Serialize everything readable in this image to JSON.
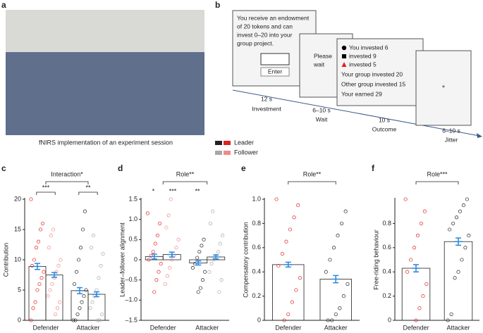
{
  "panel_labels": [
    "a",
    "b"
  ],
  "photo": {
    "caption": "fNIRS implementation of an experiment session"
  },
  "task": {
    "screen1": {
      "lines": [
        "You receive an endowment",
        "of 20 tokens and can",
        "invest 0–20 into your",
        "group project."
      ],
      "button": "Enter"
    },
    "screen2": {
      "lines": [
        "Please",
        "wait"
      ]
    },
    "screen3": {
      "lines": [
        "You invested 6",
        "invested 9",
        "invested 5",
        "Your group invested 20",
        "Other group invested 15",
        "Your earned 29"
      ]
    },
    "screen4": {
      "lines": [
        "+"
      ]
    },
    "stages": [
      {
        "duration": "12 s",
        "name": "Investment"
      },
      {
        "duration": "6–10 s",
        "name": "Wait"
      },
      {
        "duration": "10 s",
        "name": "Outcome"
      },
      {
        "duration": "6–10 s",
        "name": "Jitter"
      }
    ]
  },
  "chart_data": [
    {
      "type": "bar",
      "panel": "c",
      "ylabel": "Contribution",
      "categories": [
        "Defender",
        "Attacker"
      ],
      "ylim": [
        0,
        20
      ],
      "yticks": [
        0,
        5,
        10,
        15,
        20
      ],
      "error_color": "#2f86d6",
      "annotations": [
        "Interaction*",
        "***",
        "**"
      ],
      "series": [
        {
          "name": "Leader",
          "color": [
            "#e02020",
            "#222222"
          ],
          "values": [
            8.9,
            4.9
          ],
          "errors": [
            0.5,
            0.5
          ],
          "points": [
            [
              20,
              16,
              15,
              13,
              12,
              10,
              9,
              8,
              7,
              6,
              5,
              3,
              2,
              0
            ],
            [
              18,
              15,
              12,
              10,
              8,
              6,
              5,
              4,
              3,
              2,
              1,
              0,
              0
            ]
          ]
        },
        {
          "name": "Follower",
          "color": [
            "#f08a8a",
            "#a8a8a8"
          ],
          "values": [
            7.5,
            4.3
          ],
          "errors": [
            0.4,
            0.4
          ],
          "points": [
            [
              15,
              14,
              12,
              10,
              9,
              8,
              7,
              6,
              5,
              4,
              3,
              2,
              1
            ],
            [
              14,
              12,
              11,
              9,
              7,
              5,
              4,
              3,
              2,
              1,
              0,
              0
            ]
          ]
        }
      ]
    },
    {
      "type": "bar",
      "panel": "d",
      "ylabel": "Leader–follower alignment",
      "categories": [
        "Defender",
        "Attacker"
      ],
      "ylim": [
        -1.5,
        1.5
      ],
      "yticks": [
        {
          "value": -1.5,
          "label": "–1.5"
        },
        {
          "value": -1,
          "label": "–1.0"
        },
        {
          "value": -0.5,
          "label": "–0.5"
        },
        0,
        0.5,
        {
          "value": 1,
          "label": "1.0"
        },
        1.5
      ],
      "error_color": "#2f86d6",
      "annotations": [
        "Role**",
        "*",
        "***",
        "**"
      ],
      "series": [
        {
          "name": "Leader",
          "color": [
            "#e02020",
            "#222222"
          ],
          "values": [
            0.08,
            -0.08
          ],
          "errors": [
            0.06,
            0.05
          ],
          "points": [
            [
              1.15,
              0.9,
              0.6,
              0.4,
              0.2,
              0.1,
              0,
              -0.1,
              -0.3,
              -0.5,
              -0.8
            ],
            [
              0.5,
              0.35,
              0.2,
              0.05,
              -0.1,
              -0.2,
              -0.3,
              -0.5,
              -0.7,
              -0.8
            ]
          ]
        },
        {
          "name": "Follower",
          "color": [
            "#f08a8a",
            "#a8a8a8"
          ],
          "values": [
            0.13,
            0.07
          ],
          "errors": [
            0.06,
            0.05
          ],
          "points": [
            [
              1.5,
              1.1,
              0.8,
              0.5,
              0.3,
              0.1,
              0,
              -0.2,
              -0.4,
              -0.6
            ],
            [
              1.2,
              0.9,
              0.6,
              0.4,
              0.2,
              0.1,
              0,
              -0.1,
              -0.3,
              -0.5,
              -0.8
            ]
          ]
        }
      ]
    },
    {
      "type": "bar",
      "panel": "e",
      "ylabel": "Compensatory contribution",
      "categories": [
        "Defender",
        "Attacker"
      ],
      "ylim": [
        0,
        1
      ],
      "yticks": [
        0,
        0.2,
        0.4,
        0.6,
        0.8,
        {
          "value": 1,
          "label": "1.0"
        }
      ],
      "error_color": "#2f86d6",
      "annotations": [
        "Role**"
      ],
      "series": [
        {
          "color": [
            "#e02020",
            "#222222"
          ],
          "values": [
            0.46,
            0.34
          ],
          "errors": [
            0.02,
            0.03
          ],
          "points": [
            [
              1,
              0.95,
              0.85,
              0.75,
              0.65,
              0.55,
              0.45,
              0.35,
              0.25,
              0.15,
              0.05,
              0
            ],
            [
              0.9,
              0.8,
              0.7,
              0.6,
              0.5,
              0.4,
              0.3,
              0.2,
              0.1,
              0.05,
              0,
              0
            ]
          ]
        }
      ]
    },
    {
      "type": "bar",
      "panel": "f",
      "ylabel": "Free-riding behaviour",
      "categories": [
        "Defender",
        "Attacker"
      ],
      "ylim": [
        0,
        1
      ],
      "yticks": [
        0,
        0.2,
        0.4,
        0.6,
        0.8
      ],
      "error_color": "#2f86d6",
      "annotations": [
        "Role***"
      ],
      "series": [
        {
          "color": [
            "#e02020",
            "#222222"
          ],
          "values": [
            0.43,
            0.65
          ],
          "errors": [
            0.03,
            0.03
          ],
          "points": [
            [
              1,
              0.9,
              0.8,
              0.7,
              0.6,
              0.5,
              0.4,
              0.3,
              0.2,
              0.1,
              0
            ],
            [
              1,
              0.95,
              0.9,
              0.85,
              0.8,
              0.75,
              0.7,
              0.6,
              0.5,
              0.4,
              0.35,
              0.05,
              0
            ]
          ]
        }
      ]
    }
  ]
}
